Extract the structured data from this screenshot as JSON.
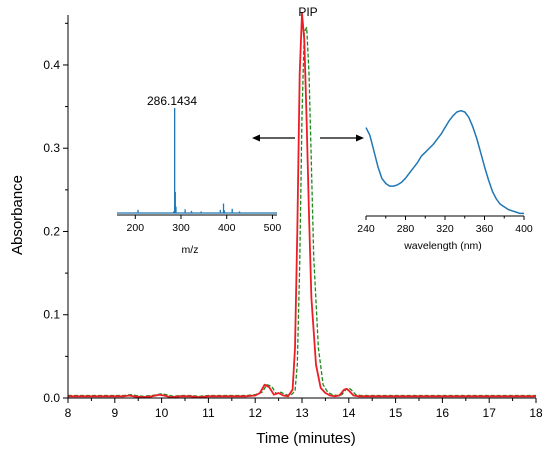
{
  "chart_data": [
    {
      "type": "line",
      "title": "",
      "xlabel": "Time (minutes)",
      "ylabel": "Absorbance",
      "xlim": [
        8,
        18
      ],
      "ylim": [
        0,
        0.46
      ],
      "x_ticks": [
        "8",
        "9",
        "10",
        "11",
        "12",
        "13",
        "14",
        "15",
        "16",
        "17",
        "18"
      ],
      "y_ticks": [
        "0.0",
        "0.1",
        "0.2",
        "0.3",
        "0.4"
      ],
      "annotations": [
        {
          "text": "PIP",
          "x": 13.05,
          "y": 0.462
        }
      ],
      "colors": {
        "series_a": "#ee1c25",
        "series_b": "#1a8a1a"
      },
      "series": [
        {
          "line_style": "solid",
          "x": [
            8.0,
            8.5,
            9.0,
            9.2,
            9.3,
            9.4,
            9.6,
            9.8,
            9.95,
            10.05,
            10.2,
            10.4,
            10.6,
            10.8,
            11.0,
            11.2,
            11.5,
            11.8,
            12.0,
            12.1,
            12.2,
            12.3,
            12.4,
            12.5,
            12.6,
            12.7,
            12.8,
            12.85,
            12.9,
            12.95,
            13.0,
            13.05,
            13.1,
            13.15,
            13.2,
            13.3,
            13.4,
            13.5,
            13.6,
            13.7,
            13.8,
            13.9,
            13.95,
            14.0,
            14.1,
            14.2,
            14.4,
            14.6,
            15.0,
            15.5,
            16.0,
            16.5,
            17.0,
            17.5,
            18.0
          ],
          "y": [
            0.002,
            0.002,
            0.002,
            0.002,
            0.003,
            0.002,
            0.001,
            0.002,
            0.004,
            0.003,
            0.001,
            0.002,
            0.002,
            0.001,
            0.002,
            0.002,
            0.002,
            0.002,
            0.003,
            0.006,
            0.016,
            0.013,
            0.004,
            0.006,
            0.003,
            0.002,
            0.01,
            0.06,
            0.2,
            0.39,
            0.462,
            0.43,
            0.33,
            0.22,
            0.12,
            0.04,
            0.012,
            0.006,
            0.003,
            0.002,
            0.003,
            0.01,
            0.011,
            0.009,
            0.003,
            0.002,
            0.002,
            0.002,
            0.002,
            0.002,
            0.002,
            0.002,
            0.002,
            0.002,
            0.002
          ]
        },
        {
          "line_style": "dashed",
          "x": [
            8.0,
            8.5,
            9.0,
            9.2,
            9.35,
            9.45,
            9.6,
            9.8,
            10.0,
            10.1,
            10.25,
            10.4,
            10.6,
            10.8,
            11.0,
            11.2,
            11.5,
            11.8,
            12.0,
            12.15,
            12.25,
            12.35,
            12.45,
            12.55,
            12.65,
            12.75,
            12.85,
            12.9,
            12.95,
            13.0,
            13.05,
            13.1,
            13.15,
            13.2,
            13.25,
            13.35,
            13.45,
            13.55,
            13.65,
            13.75,
            13.85,
            13.95,
            14.0,
            14.05,
            14.15,
            14.25,
            14.4,
            14.6,
            15.0,
            15.5,
            16.0,
            16.5,
            17.0,
            17.5,
            18.0
          ],
          "y": [
            0.003,
            0.003,
            0.003,
            0.003,
            0.004,
            0.003,
            0.002,
            0.003,
            0.005,
            0.004,
            0.002,
            0.003,
            0.003,
            0.002,
            0.003,
            0.003,
            0.003,
            0.003,
            0.004,
            0.007,
            0.016,
            0.014,
            0.005,
            0.007,
            0.004,
            0.003,
            0.008,
            0.04,
            0.16,
            0.34,
            0.44,
            0.445,
            0.39,
            0.28,
            0.17,
            0.06,
            0.016,
            0.007,
            0.004,
            0.003,
            0.004,
            0.011,
            0.012,
            0.01,
            0.004,
            0.003,
            0.003,
            0.003,
            0.003,
            0.003,
            0.003,
            0.003,
            0.003,
            0.003,
            0.003
          ]
        }
      ]
    },
    {
      "type": "line",
      "title": "",
      "xlabel": "m/z",
      "ylabel": "",
      "xlim": [
        160,
        510
      ],
      "x_ticks": [
        "200",
        "300",
        "400",
        "500"
      ],
      "color": "#1f77b4",
      "peaks": [
        {
          "mz": 206,
          "intensity": 0.03
        },
        {
          "mz": 284,
          "intensity": 0.015
        },
        {
          "mz": 286.1434,
          "intensity": 1.0
        },
        {
          "mz": 287.5,
          "intensity": 0.2
        },
        {
          "mz": 289,
          "intensity": 0.06
        },
        {
          "mz": 309,
          "intensity": 0.035
        },
        {
          "mz": 323,
          "intensity": 0.02
        },
        {
          "mz": 344,
          "intensity": 0.015
        },
        {
          "mz": 386,
          "intensity": 0.03
        },
        {
          "mz": 393,
          "intensity": 0.09
        },
        {
          "mz": 395,
          "intensity": 0.025
        },
        {
          "mz": 412,
          "intensity": 0.04
        },
        {
          "mz": 428,
          "intensity": 0.015
        }
      ],
      "annotations": [
        {
          "text": "286.1434",
          "x": 286.1434
        }
      ]
    },
    {
      "type": "line",
      "title": "",
      "xlabel": "wavelength (nm)",
      "ylabel": "",
      "xlim": [
        240,
        400
      ],
      "x_ticks": [
        "240",
        "280",
        "320",
        "360",
        "400"
      ],
      "color": "#1f77b4",
      "x": [
        240,
        244,
        248,
        252,
        256,
        260,
        264,
        268,
        272,
        276,
        280,
        284,
        288,
        292,
        296,
        300,
        304,
        308,
        312,
        316,
        320,
        324,
        328,
        332,
        336,
        340,
        344,
        348,
        352,
        356,
        360,
        364,
        368,
        372,
        376,
        380,
        384,
        388,
        392,
        396,
        400
      ],
      "y": [
        0.68,
        0.62,
        0.5,
        0.38,
        0.29,
        0.25,
        0.23,
        0.23,
        0.24,
        0.26,
        0.29,
        0.33,
        0.37,
        0.41,
        0.46,
        0.49,
        0.52,
        0.55,
        0.59,
        0.63,
        0.68,
        0.73,
        0.77,
        0.8,
        0.81,
        0.8,
        0.76,
        0.69,
        0.6,
        0.49,
        0.38,
        0.28,
        0.19,
        0.13,
        0.09,
        0.07,
        0.05,
        0.04,
        0.03,
        0.02,
        0.02
      ]
    }
  ]
}
